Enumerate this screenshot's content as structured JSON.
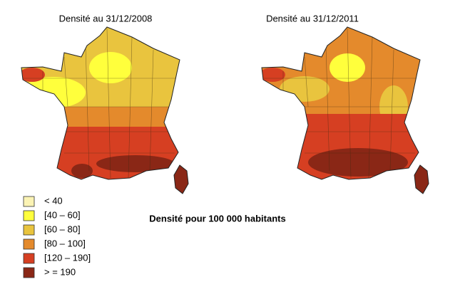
{
  "maps": [
    {
      "title": "Densité au 31/12/2008"
    },
    {
      "title": "Densité au 31/12/2011"
    }
  ],
  "legend": {
    "items": [
      {
        "label": "< 40",
        "color": "#fbf3b4"
      },
      {
        "label": "[40 – 60]",
        "color": "#ffff3c"
      },
      {
        "label": "[60 – 80]",
        "color": "#e9c43e"
      },
      {
        "label": "[80 – 100]",
        "color": "#e48a2c"
      },
      {
        "label": "[120 – 190]",
        "color": "#d63f22"
      },
      {
        "label": "> = 190",
        "color": "#8a2716"
      }
    ]
  },
  "caption": "Densité pour 100 000 habitants"
}
